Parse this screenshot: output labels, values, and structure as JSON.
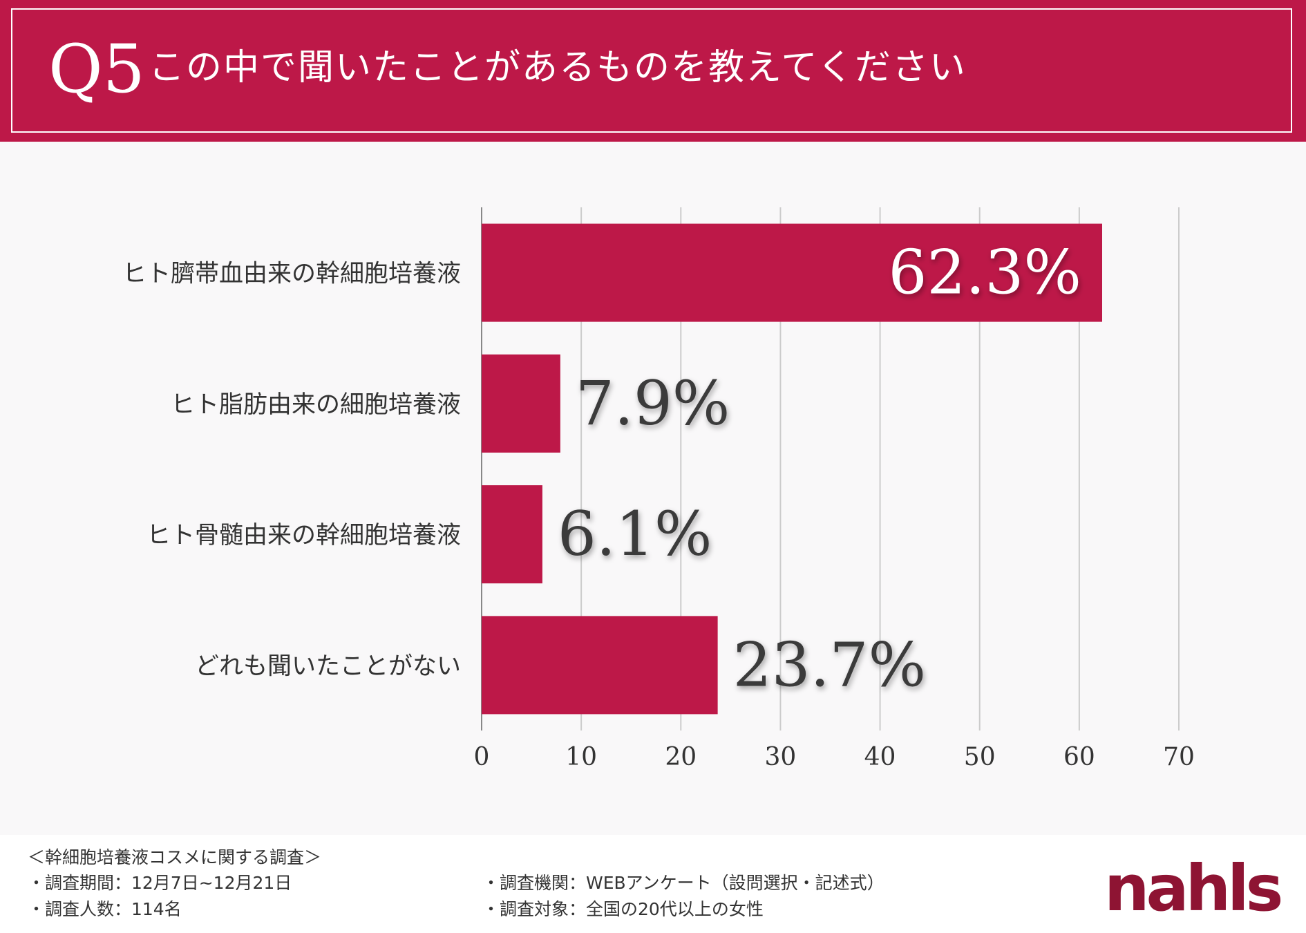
{
  "header": {
    "question_number": "Q5",
    "question_text": "この中で聞いたことがあるものを教えてください"
  },
  "colors": {
    "accent": "#bd1848",
    "grid": "#cccccc",
    "label_text": "#333333",
    "background": "#f9f8f9"
  },
  "chart_data": {
    "type": "bar",
    "orientation": "horizontal",
    "categories": [
      "ヒト臍帯血由来の幹細胞培養液",
      "ヒト脂肪由来の細胞培養液",
      "ヒト骨髄由来の幹細胞培養液",
      "どれも聞いたことがない"
    ],
    "values": [
      62.3,
      7.9,
      6.1,
      23.7
    ],
    "data_labels": [
      "62.3%",
      "7.9%",
      "6.1%",
      "23.7%"
    ],
    "xlim": [
      0,
      70
    ],
    "xticks": [
      0,
      10,
      20,
      30,
      40,
      50,
      60,
      70
    ],
    "grid": true,
    "title": "",
    "xlabel": "",
    "ylabel": ""
  },
  "footer": {
    "survey_title": "＜幹細胞培養液コスメに関する調査＞",
    "period": "・調査期間：12月7日~12月21日",
    "respondents": "・調査人数：114名",
    "organization": "・調査機関：WEBアンケート（設問選択・記述式）",
    "target": "・調査対象：全国の20代以上の女性",
    "logo": "nahls"
  }
}
